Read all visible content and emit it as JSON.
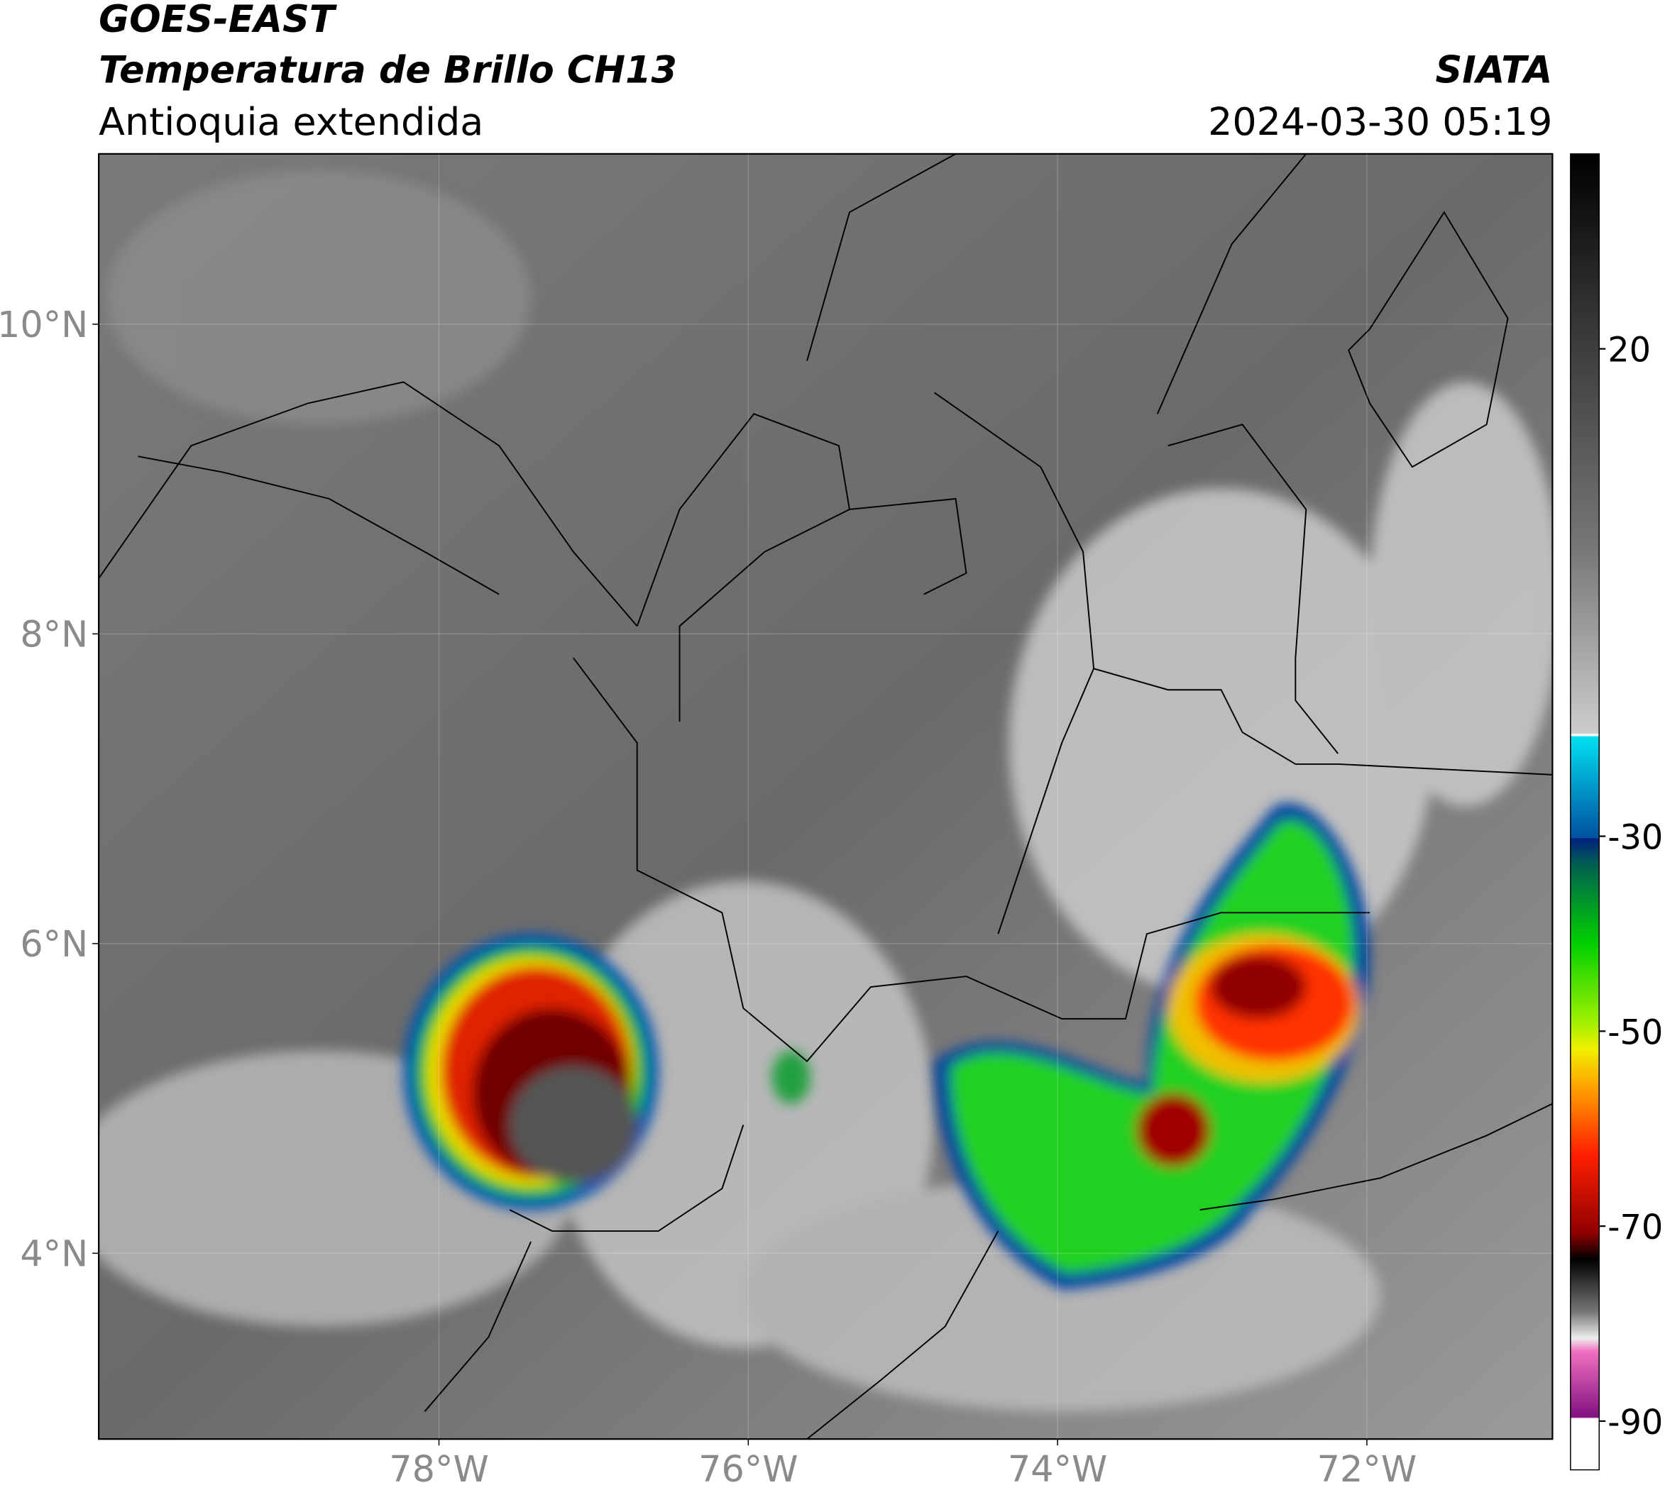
{
  "header": {
    "title": "GOES-EAST",
    "subtitle": "Temperatura de Brillo CH13",
    "region": "Antioquia extendida",
    "source": "SIATA",
    "datetime": "2024-03-30 05:19"
  },
  "map": {
    "xlim": [
      -80.2,
      -70.8
    ],
    "ylim": [
      2.8,
      11.1
    ],
    "grid": true,
    "xticks": [
      {
        "value": -78,
        "label": "78°W"
      },
      {
        "value": -76,
        "label": "76°W"
      },
      {
        "value": -74,
        "label": "74°W"
      },
      {
        "value": -72,
        "label": "72°W"
      }
    ],
    "yticks": [
      {
        "value": 10,
        "label": "10°N"
      },
      {
        "value": 8,
        "label": "8°N"
      },
      {
        "value": 6,
        "label": "6°N"
      },
      {
        "value": 4,
        "label": "4°N"
      }
    ]
  },
  "colorbar": {
    "clim": [
      -95,
      40
    ],
    "ticks": [
      20,
      -30,
      -50,
      -70,
      -90
    ]
  }
}
